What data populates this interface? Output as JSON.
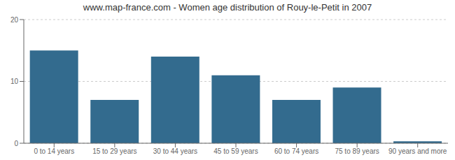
{
  "chart_data": {
    "type": "bar",
    "title": "www.map-france.com - Women age distribution of Rouy-le-Petit in 2007",
    "categories": [
      "0 to 14 years",
      "15 to 29 years",
      "30 to 44 years",
      "45 to 59 years",
      "60 to 74 years",
      "75 to 89 years",
      "90 years and more"
    ],
    "values": [
      15,
      7,
      14,
      11,
      7,
      9,
      0.3
    ],
    "color": "#336b8e",
    "ylim": [
      0,
      20
    ],
    "yticks": [
      0,
      10,
      20
    ],
    "grid": true
  }
}
